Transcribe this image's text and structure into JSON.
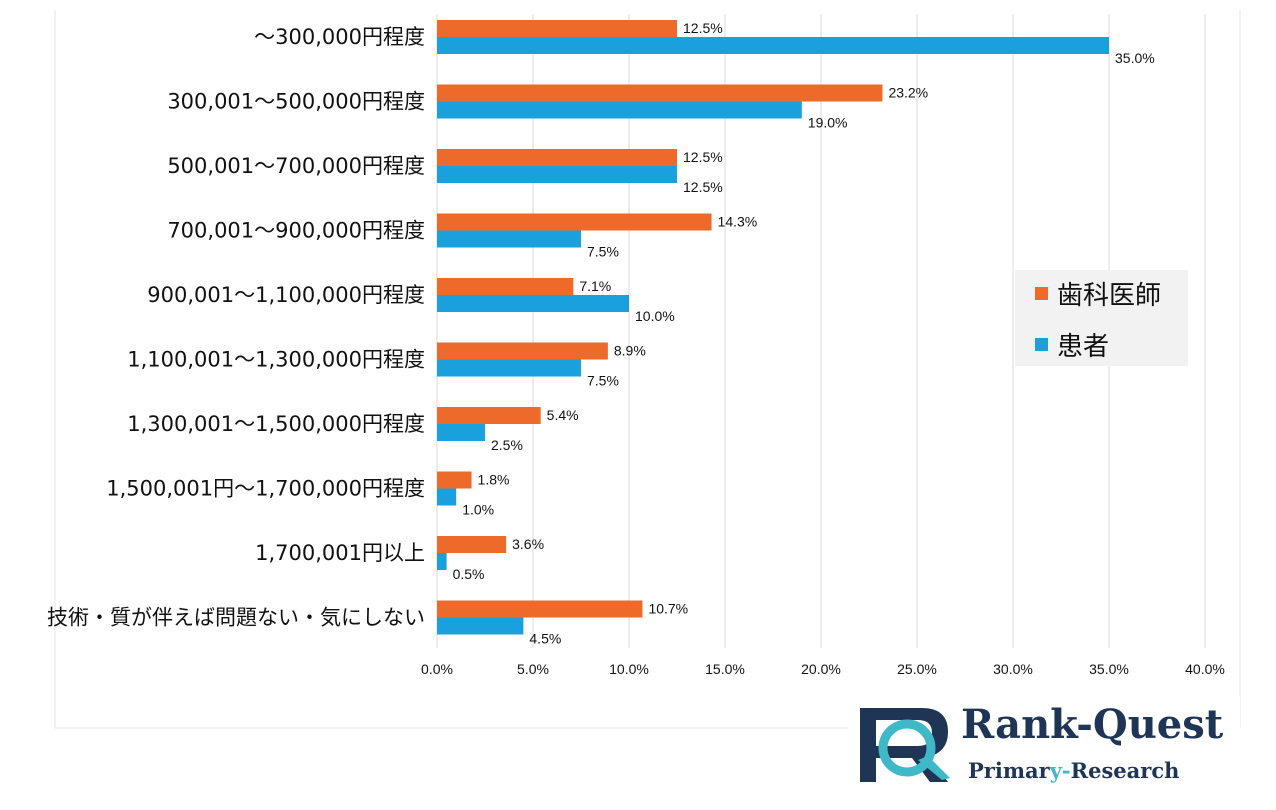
{
  "chart_data": {
    "type": "bar",
    "orientation": "horizontal",
    "title": "",
    "xlabel": "",
    "ylabel": "",
    "xlim": [
      0,
      40
    ],
    "x_ticks": [
      "0.0%",
      "5.0%",
      "10.0%",
      "15.0%",
      "20.0%",
      "25.0%",
      "30.0%",
      "35.0%",
      "40.0%"
    ],
    "x_tick_values": [
      0,
      5,
      10,
      15,
      20,
      25,
      30,
      35,
      40
    ],
    "grid": true,
    "legend_position": "right",
    "categories": [
      "～300,000円程度",
      "300,001～500,000円程度",
      "500,001～700,000円程度",
      "700,001～900,000円程度",
      "900,001～1,100,000円程度",
      "1,100,001～1,300,000円程度",
      "1,300,001～1,500,000円程度",
      "1,500,001円～1,700,000円程度",
      "1,700,001円以上",
      "技術・質が伴えば問題ない・気にしない"
    ],
    "series": [
      {
        "name": "歯科医師",
        "color": "#ee6a2a",
        "values": [
          12.5,
          23.2,
          12.5,
          14.3,
          7.1,
          8.9,
          5.4,
          1.8,
          3.6,
          10.7
        ],
        "labels": [
          "12.5%",
          "23.2%",
          "12.5%",
          "14.3%",
          "7.1%",
          "8.9%",
          "5.4%",
          "1.8%",
          "3.6%",
          "10.7%"
        ]
      },
      {
        "name": "患者",
        "color": "#1aa0dd",
        "values": [
          35.0,
          19.0,
          12.5,
          7.5,
          10.0,
          7.5,
          2.5,
          1.0,
          0.5,
          4.5
        ],
        "labels": [
          "35.0%",
          "19.0%",
          "12.5%",
          "7.5%",
          "10.0%",
          "7.5%",
          "2.5%",
          "1.0%",
          "0.5%",
          "4.5%"
        ]
      }
    ]
  },
  "logo": {
    "main_text": "Rank-Quest",
    "sub_text_part1": "Primar",
    "sub_text_part2": "y-",
    "sub_text_part3": "Research",
    "primary_color": "#1f3556",
    "accent_color": "#3fb8c8"
  }
}
